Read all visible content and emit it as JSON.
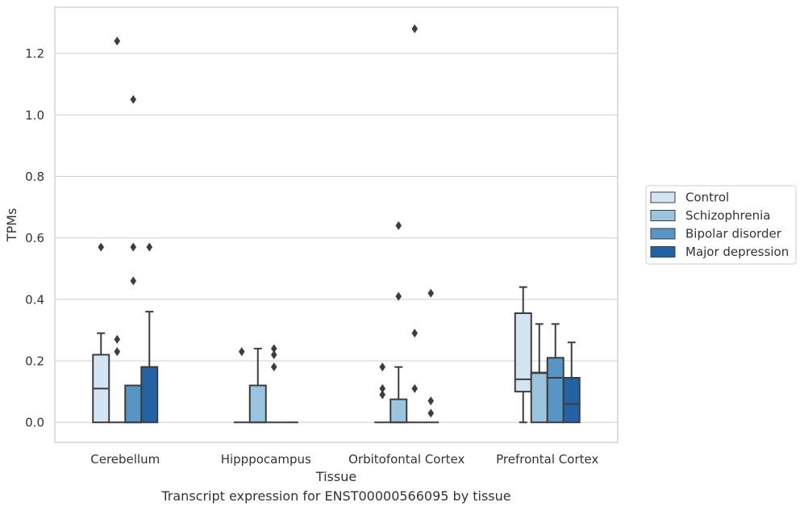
{
  "chart_data": {
    "type": "box",
    "xlabel": "Tissue",
    "ylabel": "TPMs",
    "caption": "Transcript expression for ENST00000566095 by tissue",
    "categories": [
      "Cerebellum",
      "Hipppocampus",
      "Orbitofontal Cortex",
      "Prefrontal Cortex"
    ],
    "ylim": [
      -0.065,
      1.35
    ],
    "yticks": [
      0.0,
      0.2,
      0.4,
      0.6,
      0.8,
      1.0,
      1.2
    ],
    "ytick_labels": [
      "0.0",
      "0.2",
      "0.4",
      "0.6",
      "0.8",
      "1.0",
      "1.2"
    ],
    "grid": "horizontal",
    "legend_position": "right",
    "series": [
      {
        "name": "Control",
        "color": "#d4e4f2",
        "boxes": [
          {
            "q1": 0.0,
            "median": 0.11,
            "q3": 0.22,
            "whislo": 0.0,
            "whishi": 0.29,
            "fliers": [
              0.57
            ]
          },
          {
            "q1": 0.0,
            "median": 0.0,
            "q3": 0.0,
            "whislo": 0.0,
            "whishi": 0.0,
            "fliers": [
              0.23
            ]
          },
          {
            "q1": 0.0,
            "median": 0.0,
            "q3": 0.0,
            "whislo": 0.0,
            "whishi": 0.0,
            "fliers": [
              0.09,
              0.11,
              0.18
            ]
          },
          {
            "q1": 0.1,
            "median": 0.14,
            "q3": 0.355,
            "whislo": 0.0,
            "whishi": 0.44,
            "fliers": []
          }
        ]
      },
      {
        "name": "Schizophrenia",
        "color": "#9bc4de",
        "boxes": [
          {
            "q1": 0.0,
            "median": 0.0,
            "q3": 0.0,
            "whislo": 0.0,
            "whishi": 0.0,
            "fliers": [
              0.23,
              0.27,
              1.24
            ]
          },
          {
            "q1": 0.0,
            "median": 0.0,
            "q3": 0.12,
            "whislo": 0.0,
            "whishi": 0.24,
            "fliers": []
          },
          {
            "q1": 0.0,
            "median": 0.0,
            "q3": 0.075,
            "whislo": 0.0,
            "whishi": 0.18,
            "fliers": [
              0.41,
              0.64
            ]
          },
          {
            "q1": 0.0,
            "median": 0.16,
            "q3": 0.162,
            "whislo": 0.0,
            "whishi": 0.32,
            "fliers": []
          }
        ]
      },
      {
        "name": "Bipolar disorder",
        "color": "#5796c4",
        "boxes": [
          {
            "q1": 0.0,
            "median": 0.0,
            "q3": 0.12,
            "whislo": 0.0,
            "whishi": 0.12,
            "fliers": [
              0.46,
              0.57,
              1.05
            ]
          },
          {
            "q1": 0.0,
            "median": 0.0,
            "q3": 0.0,
            "whislo": 0.0,
            "whishi": 0.0,
            "fliers": [
              0.18,
              0.22,
              0.24
            ]
          },
          {
            "q1": 0.0,
            "median": 0.0,
            "q3": 0.0,
            "whislo": 0.0,
            "whishi": 0.0,
            "fliers": [
              0.11,
              0.29,
              1.28
            ]
          },
          {
            "q1": 0.0,
            "median": 0.145,
            "q3": 0.21,
            "whislo": 0.0,
            "whishi": 0.32,
            "fliers": []
          }
        ]
      },
      {
        "name": "Major depression",
        "color": "#2463a3",
        "boxes": [
          {
            "q1": 0.0,
            "median": 0.18,
            "q3": 0.18,
            "whislo": 0.0,
            "whishi": 0.36,
            "fliers": [
              0.57
            ]
          },
          {
            "q1": 0.0,
            "median": 0.0,
            "q3": 0.0,
            "whislo": 0.0,
            "whishi": 0.0,
            "fliers": []
          },
          {
            "q1": 0.0,
            "median": 0.0,
            "q3": 0.0,
            "whislo": 0.0,
            "whishi": 0.0,
            "fliers": [
              0.03,
              0.07,
              0.42
            ]
          },
          {
            "q1": 0.0,
            "median": 0.06,
            "q3": 0.145,
            "whislo": 0.0,
            "whishi": 0.26,
            "fliers": []
          }
        ]
      }
    ]
  }
}
